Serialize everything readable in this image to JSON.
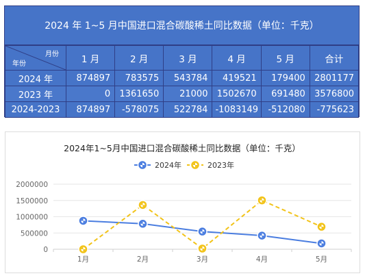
{
  "table": {
    "title": "2024 年 1~5 月中国进口混合碳酸稀土同比数据（单位：千克）",
    "corner_month": "月份",
    "corner_year": "年份",
    "columns": [
      "1 月",
      "2 月",
      "3 月",
      "4 月",
      "5 月",
      "合计"
    ],
    "rows": [
      {
        "label": "2024 年",
        "values": [
          "874897",
          "783575",
          "543784",
          "419521",
          "179400",
          "2801177"
        ]
      },
      {
        "label": "2023 年",
        "values": [
          "0",
          "1361650",
          "21000",
          "1502670",
          "691480",
          "3576800"
        ]
      },
      {
        "label": "2024-2023",
        "values": [
          "874897",
          "-578075",
          "522784",
          "-1083149",
          "-512080",
          "-775623"
        ]
      }
    ]
  },
  "chart_data": {
    "type": "line",
    "title": "2024年1~5月中国进口混合碳酸稀土同比数据（单位：千克）",
    "categories": [
      "1月",
      "2月",
      "3月",
      "4月",
      "5月"
    ],
    "series": [
      {
        "name": "2024年",
        "values": [
          874897,
          783575,
          543784,
          419521,
          179400
        ],
        "color": "#4a7de0",
        "style": "solid"
      },
      {
        "name": "2023年",
        "values": [
          0,
          1361650,
          21000,
          1502670,
          691480
        ],
        "color": "#f2c318",
        "style": "dashed"
      }
    ],
    "yticks": [
      "0",
      "500000",
      "1000000",
      "1500000",
      "2000000"
    ],
    "ylim": [
      0,
      2000000
    ],
    "grid": true,
    "legend": "top-center"
  }
}
